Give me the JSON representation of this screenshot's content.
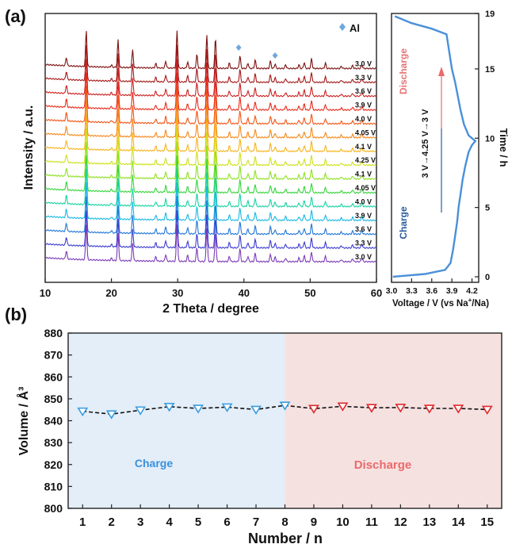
{
  "panel_a_label": "(a)",
  "panel_b_label": "(b)",
  "chart_data": [
    {
      "type": "line",
      "panel": "(a)",
      "xlabel": "2 Theta / degree",
      "ylabel": "Intensity / a.u.",
      "xlim": [
        10,
        60
      ],
      "x_ticks": [
        "10",
        "20",
        "30",
        "40",
        "50",
        "60"
      ],
      "legend": {
        "marker_label": "Al",
        "marker_color": "#6fa8dc",
        "position": "top-right"
      },
      "al_marker_positions": [
        39.2,
        44.7
      ],
      "peaks": [
        {
          "x": 13.2,
          "h": 0.22
        },
        {
          "x": 16.2,
          "h": 0.95
        },
        {
          "x": 20.0,
          "h": 0.06
        },
        {
          "x": 21.0,
          "h": 0.72
        },
        {
          "x": 23.2,
          "h": 0.46
        },
        {
          "x": 26.7,
          "h": 0.12
        },
        {
          "x": 28.2,
          "h": 0.18
        },
        {
          "x": 29.9,
          "h": 0.98
        },
        {
          "x": 31.5,
          "h": 0.16
        },
        {
          "x": 32.9,
          "h": 0.36
        },
        {
          "x": 34.4,
          "h": 0.88
        },
        {
          "x": 35.7,
          "h": 0.8
        },
        {
          "x": 37.8,
          "h": 0.14
        },
        {
          "x": 39.4,
          "h": 0.34
        },
        {
          "x": 40.6,
          "h": 0.14
        },
        {
          "x": 41.7,
          "h": 0.22
        },
        {
          "x": 44.0,
          "h": 0.2
        },
        {
          "x": 44.7,
          "h": 0.12
        },
        {
          "x": 46.3,
          "h": 0.1
        },
        {
          "x": 48.3,
          "h": 0.1
        },
        {
          "x": 49.1,
          "h": 0.16
        },
        {
          "x": 50.2,
          "h": 0.26
        },
        {
          "x": 52.3,
          "h": 0.14
        },
        {
          "x": 54.7,
          "h": 0.06
        },
        {
          "x": 56.4,
          "h": 0.08
        },
        {
          "x": 57.8,
          "h": 0.1
        }
      ],
      "series": [
        {
          "name": "3.0 V",
          "color": "#7d1010"
        },
        {
          "name": "3.3 V",
          "color": "#a51818"
        },
        {
          "name": "3.6 V",
          "color": "#cc2020"
        },
        {
          "name": "3.9 V",
          "color": "#e82a1a"
        },
        {
          "name": "4.0 V",
          "color": "#f25515"
        },
        {
          "name": "4.05 V",
          "color": "#f5881a"
        },
        {
          "name": "4.1 V",
          "color": "#f6b41c"
        },
        {
          "name": "4.25 V",
          "color": "#cfe11a"
        },
        {
          "name": "4.1 V",
          "color": "#8fe022"
        },
        {
          "name": "4.05 V",
          "color": "#35d43a"
        },
        {
          "name": "4.0 V",
          "color": "#18d2a2"
        },
        {
          "name": "3.9 V",
          "color": "#1ab8e4"
        },
        {
          "name": "3.6 V",
          "color": "#2176d8"
        },
        {
          "name": "3.3 V",
          "color": "#3c3cd0"
        },
        {
          "name": "3.0 V",
          "color": "#7d3cb8"
        }
      ]
    },
    {
      "type": "line",
      "panel": "(a) right",
      "xlabel_prefix": "Voltage / V (vs Na",
      "xlabel_sup": "+",
      "xlabel_suffix": "/Na)",
      "ylabel": "Time / h",
      "xlim": [
        3.0,
        4.3
      ],
      "ylim": [
        -0.4,
        19
      ],
      "x_ticks": [
        3.0,
        3.3,
        3.6,
        3.9,
        4.2
      ],
      "x_tick_labels": [
        "3.0",
        "3.3",
        "3.6",
        "3.9",
        "4.2"
      ],
      "y_ticks": [
        0,
        5,
        10,
        15,
        19
      ],
      "y_tick_labels": [
        "0",
        "5",
        "10",
        "15",
        "19"
      ],
      "annotations": {
        "charge": "Charge",
        "discharge": "Discharge",
        "sequence": "3 V→4.25 V→3 V"
      },
      "line_color": "#4a90d9",
      "x": [
        3.02,
        3.5,
        3.8,
        3.88,
        3.92,
        3.95,
        3.98,
        4.0,
        4.03,
        4.06,
        4.1,
        4.15,
        4.2,
        4.25,
        4.15,
        4.08,
        4.03,
        3.99,
        3.95,
        3.9,
        3.82,
        3.6,
        3.3,
        3.05
      ],
      "y": [
        0.0,
        0.2,
        0.5,
        1.0,
        2.0,
        3.0,
        4.0,
        5.0,
        6.0,
        7.0,
        8.0,
        9.0,
        9.5,
        9.8,
        10.2,
        11.0,
        12.0,
        13.0,
        14.0,
        15.0,
        17.5,
        17.9,
        18.3,
        18.8
      ]
    },
    {
      "type": "scatter",
      "panel": "(b)",
      "xlabel": "Number / n",
      "ylabel": "Volume / Å³",
      "xlim": [
        0.5,
        15.5
      ],
      "ylim": [
        800,
        880
      ],
      "x_ticks": [
        1,
        2,
        3,
        4,
        5,
        6,
        7,
        8,
        9,
        10,
        11,
        12,
        13,
        14,
        15
      ],
      "y_ticks": [
        800,
        810,
        820,
        830,
        840,
        850,
        860,
        870,
        880
      ],
      "x": [
        1,
        2,
        3,
        4,
        5,
        6,
        7,
        8,
        9,
        10,
        11,
        12,
        13,
        14,
        15
      ],
      "y": [
        844.3,
        843.0,
        844.8,
        846.4,
        845.6,
        846.2,
        845.1,
        847.0,
        845.5,
        846.6,
        845.9,
        846.0,
        845.6,
        845.6,
        845.1
      ],
      "regions": [
        {
          "label": "Charge",
          "from": 0.5,
          "to": 8,
          "fill": "#e3eef8",
          "text_color": "#3a8fde",
          "marker_color": "#3a9ce0"
        },
        {
          "label": "Discharge",
          "from": 8,
          "to": 15.5,
          "fill": "#f6e1e1",
          "text_color": "#ea6a6a",
          "marker_color": "#e0282a"
        }
      ]
    }
  ]
}
